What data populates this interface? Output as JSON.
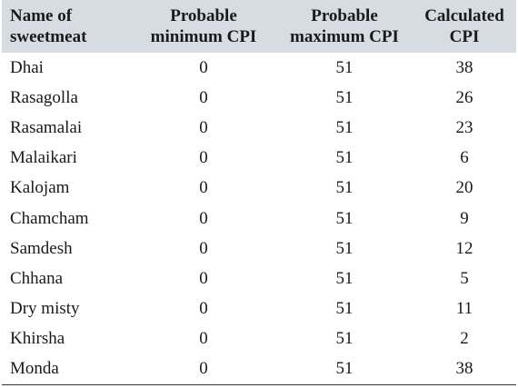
{
  "table": {
    "headers": {
      "name_line1": "Name of",
      "name_line2": "sweetmeat",
      "min_line1": "Probable",
      "min_line2": "minimum CPI",
      "max_line1": "Probable",
      "max_line2": "maximum CPI",
      "calc_line1": "Calculated",
      "calc_line2": "CPI"
    },
    "rows": [
      {
        "name": "Dhai",
        "min": "0",
        "max": "51",
        "calc": "38"
      },
      {
        "name": "Rasagolla",
        "min": "0",
        "max": "51",
        "calc": "26"
      },
      {
        "name": "Rasamalai",
        "min": "0",
        "max": "51",
        "calc": "23"
      },
      {
        "name": "Malaikari",
        "min": "0",
        "max": "51",
        "calc": "6"
      },
      {
        "name": "Kalojam",
        "min": "0",
        "max": "51",
        "calc": "20"
      },
      {
        "name": "Chamcham",
        "min": "0",
        "max": "51",
        "calc": "9"
      },
      {
        "name": "Samdesh",
        "min": "0",
        "max": "51",
        "calc": "12"
      },
      {
        "name": "Chhana",
        "min": "0",
        "max": "51",
        "calc": "5"
      },
      {
        "name": "Dry misty",
        "min": "0",
        "max": "51",
        "calc": "11"
      },
      {
        "name": "Khirsha",
        "min": "0",
        "max": "51",
        "calc": "2"
      },
      {
        "name": "Monda",
        "min": "0",
        "max": "51",
        "calc": "38"
      }
    ]
  },
  "colors": {
    "header_background": "#d7dce2",
    "text": "#1a1a1a",
    "rule": "#333333"
  }
}
